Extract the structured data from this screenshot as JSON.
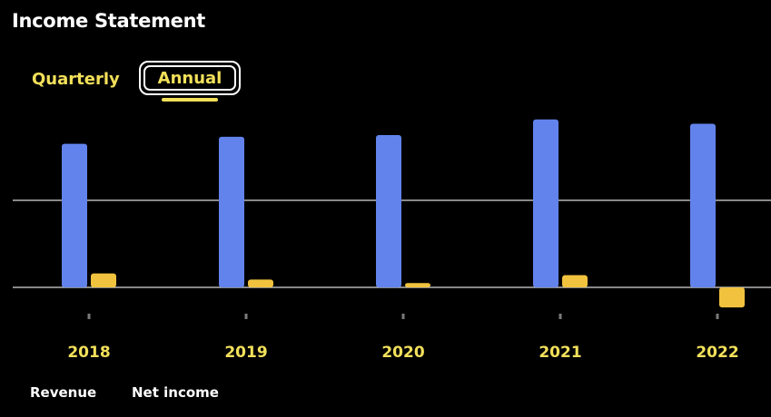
{
  "header": {
    "title": "Income Statement"
  },
  "tabs": [
    {
      "label": "Quarterly",
      "selected": false
    },
    {
      "label": "Annual",
      "selected": true
    }
  ],
  "colors": {
    "revenue": "#6283ec",
    "net_income": "#f0c23e",
    "accent": "#f2e05a",
    "gridline": "#d9d9d9"
  },
  "chart_data": {
    "type": "bar",
    "categories": [
      "2018",
      "2019",
      "2020",
      "2021",
      "2022"
    ],
    "series": [
      {
        "name": "Revenue",
        "values": [
          1.65,
          1.73,
          1.75,
          1.93,
          1.88
        ]
      },
      {
        "name": "Net income",
        "values": [
          0.16,
          0.09,
          0.05,
          0.14,
          -0.23
        ]
      }
    ],
    "ylim": [
      -0.3,
      2.0
    ],
    "grid": true,
    "legend": "bottom-left"
  }
}
